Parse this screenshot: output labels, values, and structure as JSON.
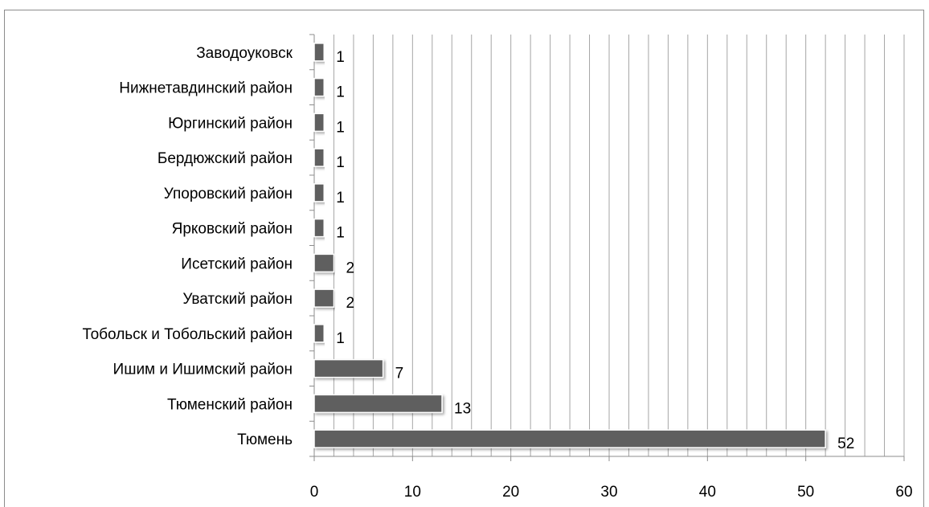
{
  "chart_data": {
    "type": "bar",
    "orientation": "horizontal",
    "categories": [
      "Тюмень",
      "Тюменский район",
      "Ишим и Ишимский район",
      "Тобольск и Тобольский район",
      "Уватский район",
      "Исетский район",
      "Ярковский район",
      "Упоровский район",
      "Бердюжский район",
      "Юргинский район",
      "Нижнетавдинский район",
      "Заводоуковск"
    ],
    "values": [
      52,
      13,
      7,
      1,
      2,
      2,
      1,
      1,
      1,
      1,
      1,
      1
    ],
    "xlim": [
      0,
      60
    ],
    "xticks": [
      0,
      10,
      20,
      30,
      40,
      50,
      60
    ],
    "gridlines": true,
    "bar_color": "#5f5f5f",
    "grid_color": "#a6a6a6"
  }
}
